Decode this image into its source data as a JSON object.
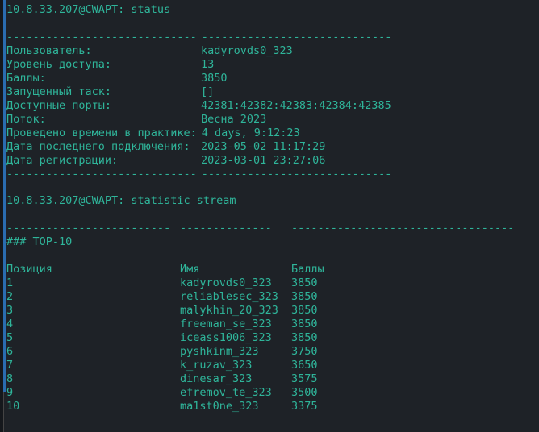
{
  "status_command": "10.8.33.207@CWAPT: status",
  "status_dashes": [
    "-----------------------------",
    "-----------------------------"
  ],
  "status_rows": [
    {
      "label": "Пользователь:",
      "value": "kadyrovds0_323"
    },
    {
      "label": "Уровень доступа:",
      "value": "13"
    },
    {
      "label": "Баллы:",
      "value": "3850"
    },
    {
      "label": "Запущенный таск:",
      "value": "[]"
    },
    {
      "label": "Доступные порты:",
      "value": "42381:42382:42383:42384:42385"
    },
    {
      "label": "Поток:",
      "value": "Весна 2023"
    },
    {
      "label": "Проведено времени в практике:",
      "value": "4 days, 9:12:23"
    },
    {
      "label": "Дата последнего подключения:",
      "value": "2023-05-02 11:17:29"
    },
    {
      "label": "Дата регистрации:",
      "value": "2023-03-01 23:27:06"
    }
  ],
  "stream_command": "10.8.33.207@CWAPT: statistic stream",
  "stream_dashes": [
    "-------------------------",
    "--------------",
    "----------------------------------"
  ],
  "top_title": "### TOP-10",
  "headers": [
    "Позиция",
    "Имя",
    "Баллы"
  ],
  "top_rows": [
    [
      "1",
      "kadyrovds0_323",
      "3850"
    ],
    [
      "2",
      "reliablesec_323",
      "3850"
    ],
    [
      "3",
      "malykhin_20_323",
      "3850"
    ],
    [
      "4",
      "freeman_se_323",
      "3850"
    ],
    [
      "5",
      "iceass1006_323",
      "3850"
    ],
    [
      "6",
      "pyshkinm_323",
      "3750"
    ],
    [
      "7",
      "k_ruzav_323",
      "3650"
    ],
    [
      "8",
      "dinesar_323",
      "3575"
    ],
    [
      "9",
      "efremov_te_323",
      "3500"
    ],
    [
      "10",
      "ma1st0ne_323",
      "3375"
    ]
  ]
}
